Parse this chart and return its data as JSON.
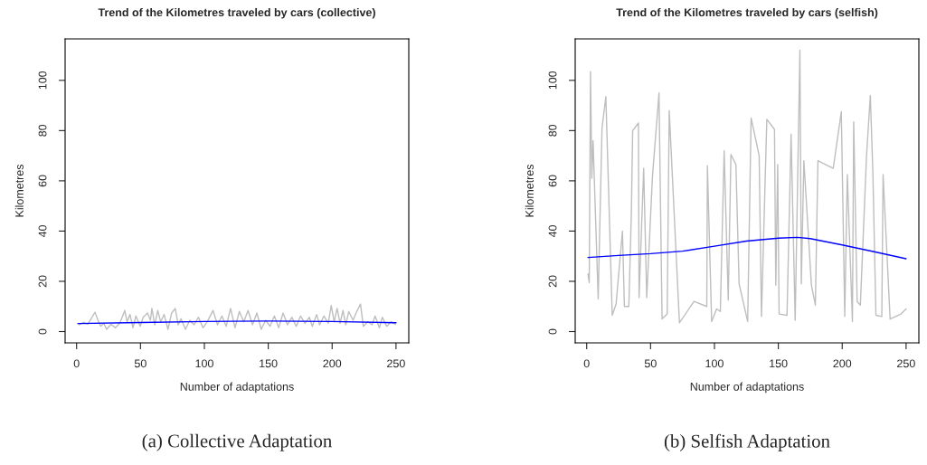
{
  "chart_data": [
    {
      "type": "line",
      "title": "Trend of the Kilometres traveled by cars (collective)",
      "xlabel": "Number of adaptations",
      "ylabel": "Kilometres",
      "xlim": [
        -9,
        260
      ],
      "ylim": [
        -4.5,
        116.5
      ],
      "xticks": [
        0,
        50,
        100,
        150,
        200,
        250
      ],
      "yticks": [
        0,
        20,
        40,
        60,
        80,
        100
      ],
      "grid": false,
      "legend": false,
      "annotations": [
        "(a) Collective Adaptation"
      ],
      "series": [
        {
          "color": "#bebebe",
          "x": [
            1.8,
            5.3,
            8.7,
            12.1,
            14.4,
            16.7,
            18.9,
            21.2,
            23.5,
            26.9,
            30.4,
            33.8,
            37.7,
            39.5,
            41.8,
            44.1,
            46.4,
            49.8,
            52.1,
            55.5,
            57.8,
            58.9,
            61.2,
            63.5,
            65.8,
            68.5,
            71.5,
            74.4,
            77.2,
            79.5,
            81.7,
            85.2,
            88.6,
            92,
            95.4,
            98.9,
            102.3,
            106.8,
            110.3,
            113.7,
            117.1,
            120.5,
            124,
            127.4,
            130.8,
            134.2,
            137.7,
            141.1,
            144.5,
            148,
            151.4,
            154.8,
            158.2,
            161.6,
            165.1,
            168.5,
            171.9,
            175.3,
            178.8,
            182.2,
            184.5,
            187.9,
            190.2,
            193.6,
            197,
            199.3,
            201.6,
            203.9,
            206.2,
            208.5,
            210.7,
            213,
            216.4,
            218.7,
            222.2,
            224.4,
            227.9,
            231.3,
            233.6,
            237,
            239.3,
            242.7,
            246.1,
            249.5
          ],
          "values": [
            2.7,
            3.6,
            2.9,
            5.7,
            7.7,
            4.5,
            2.1,
            3.3,
            0.9,
            2.9,
            1.5,
            3.3,
            8.4,
            3.9,
            6.8,
            1.5,
            6.2,
            2.1,
            5.7,
            7.4,
            4.5,
            9.2,
            2.7,
            8.4,
            3.9,
            6.8,
            0.9,
            7.4,
            9.2,
            2.7,
            5.1,
            0.9,
            4.5,
            2.7,
            5.7,
            1.5,
            3.9,
            8.4,
            2.7,
            6.2,
            2.1,
            9.2,
            1.5,
            8.0,
            3.9,
            8.4,
            2.7,
            7.4,
            0.9,
            4.5,
            2.1,
            6.2,
            1.5,
            7.4,
            2.7,
            5.7,
            2.1,
            6.2,
            3.3,
            5.7,
            2.1,
            6.8,
            2.7,
            6.2,
            3.3,
            10.4,
            3.9,
            9.2,
            3.3,
            8.4,
            2.7,
            8.0,
            4.5,
            7.4,
            10.95,
            2.1,
            3.9,
            2.7,
            6.2,
            1.5,
            5.7,
            2.1,
            3.9,
            2.9
          ]
        },
        {
          "color": "#0000ff",
          "x": [
            1,
            50,
            100,
            150,
            200,
            250
          ],
          "values": [
            3.2,
            3.6,
            4.0,
            4.2,
            4.0,
            3.5
          ]
        }
      ]
    },
    {
      "type": "line",
      "title": "Trend of the Kilometres traveled by cars (selfish)",
      "xlabel": "Number of adaptations",
      "ylabel": "Kilometres",
      "xlim": [
        -9,
        260
      ],
      "ylim": [
        -4.5,
        116.5
      ],
      "xticks": [
        0,
        50,
        100,
        150,
        200,
        250
      ],
      "yticks": [
        0,
        20,
        40,
        60,
        80,
        100
      ],
      "grid": false,
      "legend": false,
      "annotations": [
        "(b) Selfish Adaptation"
      ],
      "series": [
        {
          "color": "#bebebe",
          "x": [
            1,
            2,
            3,
            4,
            5,
            9,
            12,
            15,
            20,
            23,
            28,
            29.5,
            33,
            35,
            36,
            40.5,
            41,
            44.6,
            47,
            51.5,
            56.6,
            59,
            63,
            64.6,
            72.6,
            84,
            94,
            94.5,
            97.8,
            101.7,
            104.6,
            107.6,
            110.8,
            112.9,
            116.8,
            119.3,
            126,
            128.7,
            135,
            136.8,
            141,
            147,
            148,
            149.5,
            150.6,
            156.8,
            160,
            163.2,
            166.9,
            168,
            170,
            175.9,
            179,
            181,
            193,
            199.3,
            202,
            204,
            208,
            209,
            211.7,
            214.2,
            219,
            222,
            224,
            226.4,
            231,
            232,
            237.5,
            246,
            250
          ],
          "values": [
            23,
            19.5,
            103.5,
            61,
            76,
            13,
            81,
            93.5,
            6.5,
            11,
            40,
            10,
            10,
            48,
            80,
            83,
            13.5,
            65,
            13.5,
            62,
            95,
            5,
            7,
            88,
            3.5,
            12,
            10,
            66,
            4,
            9,
            8,
            72,
            12.5,
            70.5,
            66.5,
            19,
            4,
            85,
            70,
            6,
            84.5,
            80.5,
            18.5,
            66.5,
            7,
            6.5,
            78.5,
            4.5,
            112,
            19,
            68,
            18.5,
            10.5,
            68,
            65,
            87.5,
            6,
            62.5,
            4,
            83.5,
            12,
            10.5,
            69.5,
            94,
            63.5,
            6.5,
            6,
            62.5,
            5,
            7,
            9
          ]
        },
        {
          "color": "#0000ff",
          "x": [
            1,
            25,
            50,
            75,
            100,
            125,
            150,
            165,
            175,
            200,
            225,
            250
          ],
          "values": [
            29.5,
            30.3,
            31,
            32,
            34,
            36,
            37.2,
            37.5,
            37,
            34.5,
            31.8,
            29
          ]
        }
      ]
    }
  ]
}
